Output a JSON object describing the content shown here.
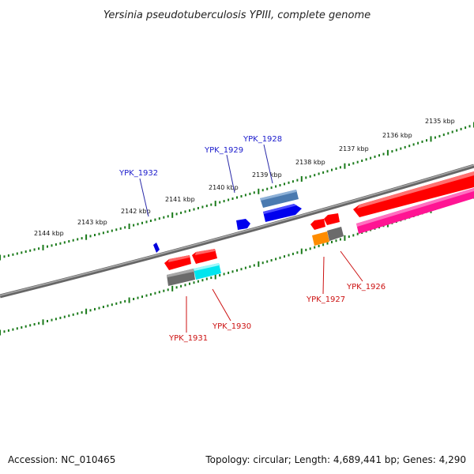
{
  "title": "Yersinia pseudotuberculosis YPIII, complete genome",
  "footer": {
    "accession": "Accession: NC_010465",
    "summary": "Topology: circular; Length: 4,689,441 bp; Genes: 4,290"
  },
  "tick_labels": [
    "2135 kbp",
    "2136 kbp",
    "2137 kbp",
    "2138 kbp",
    "2139 kbp",
    "2140 kbp",
    "2141 kbp",
    "2142 kbp",
    "2143 kbp",
    "2144 kbp"
  ],
  "genes_forward": [
    {
      "label": "YPK_1932",
      "color": "#0000dd"
    },
    {
      "label": "YPK_1929",
      "color": "#0000ee"
    },
    {
      "label": "YPK_1928",
      "color": "#0000ee"
    }
  ],
  "genes_reverse": [
    {
      "label": "YPK_1931",
      "color": "#ff0000"
    },
    {
      "label": "YPK_1930",
      "color": "#ff0000"
    },
    {
      "label": "YPK_1927",
      "color": "#ff0000"
    },
    {
      "label": "YPK_1926",
      "color": "#ff0000"
    }
  ],
  "colors": {
    "backbone": "#808080",
    "ticks": "#1a7a1a",
    "forward_gene": "#0000ee",
    "forward_gene_steel": "#4a7ab0",
    "reverse_gene": "#ff0000",
    "reverse_gene_pink": "#ff1493",
    "gray_gene": "#707070",
    "cyan_gene": "#00e5ee",
    "orange_gene": "#ff8c00"
  }
}
